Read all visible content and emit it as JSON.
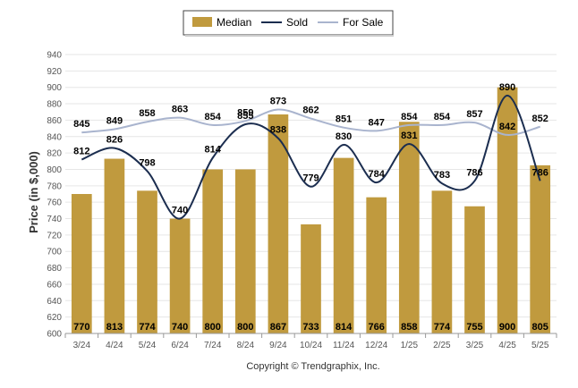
{
  "chart_data": {
    "type": "bar",
    "ylabel": "Price (in $,000)",
    "ylim": [
      600,
      940
    ],
    "yticks": [
      600,
      620,
      640,
      660,
      680,
      700,
      720,
      740,
      760,
      780,
      800,
      820,
      840,
      860,
      880,
      900,
      920,
      940
    ],
    "grid": true,
    "legend_position": "top-center",
    "categories": [
      "3/24",
      "4/24",
      "5/24",
      "6/24",
      "7/24",
      "8/24",
      "9/24",
      "10/24",
      "11/24",
      "12/24",
      "1/25",
      "2/25",
      "3/25",
      "4/25",
      "5/25"
    ],
    "series": [
      {
        "name": "Median",
        "kind": "bar",
        "color": "#C09A3E",
        "values": [
          770,
          813,
          774,
          740,
          800,
          800,
          867,
          733,
          814,
          766,
          858,
          774,
          755,
          900,
          805
        ]
      },
      {
        "name": "Sold",
        "kind": "line",
        "color": "#1B2D4F",
        "values": [
          812,
          826,
          798,
          740,
          814,
          855,
          838,
          779,
          830,
          784,
          831,
          783,
          786,
          890,
          786
        ]
      },
      {
        "name": "For Sale",
        "kind": "line",
        "color": "#A9B4CE",
        "values": [
          845,
          849,
          858,
          863,
          854,
          859,
          873,
          862,
          851,
          847,
          854,
          854,
          857,
          842,
          852
        ]
      }
    ]
  },
  "footer": "Copyright © Trendgraphix, Inc."
}
